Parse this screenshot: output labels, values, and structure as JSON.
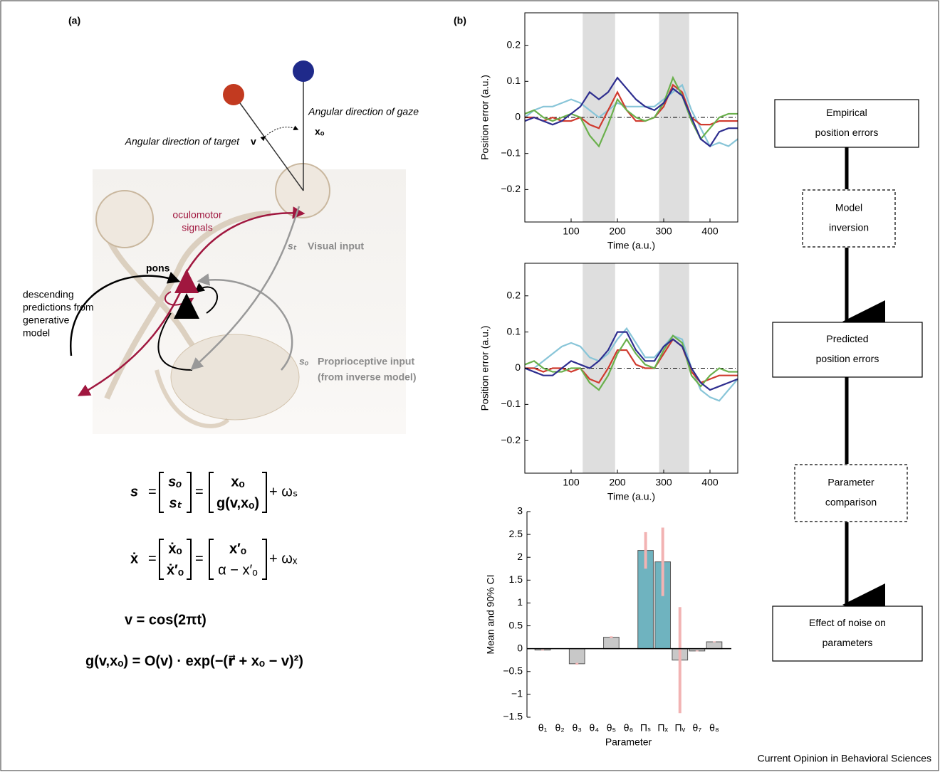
{
  "panel_labels": [
    "(a)",
    "(b)"
  ],
  "diagram": {
    "gaze_label": "Angular direction of gaze",
    "gaze_symbol": "xₒ",
    "target_label": "Angular direction of target",
    "target_symbol": "v",
    "oculomotor": [
      "oculomotor",
      "signals"
    ],
    "visual_symbol": "sₜ",
    "visual_label": "Visual input",
    "pons": "pons",
    "descending": [
      "descending",
      "predictions from",
      "generative",
      "model"
    ],
    "proprio_symbol": "sₒ",
    "proprio_label": [
      "Proprioceptive input",
      "(from inverse model)"
    ]
  },
  "equations": {
    "eq1": {
      "lhs": "s",
      "col1": [
        "sₒ",
        "sₜ"
      ],
      "col2": [
        "xₒ",
        "g(v,xₒ)"
      ],
      "tail": "+ ωₛ"
    },
    "eq2": {
      "lhs": "ẋ",
      "col1": [
        "ẋₒ",
        "ẋ′ₒ"
      ],
      "col2": [
        "x′ₒ",
        "α − x′ₒ"
      ],
      "tail": "+ ωₓ"
    },
    "eq3": "v = cos(2πt)",
    "eq4": "g(v,xₒ) = O(v) · exp(−(r⃗ + xₒ − v)²)"
  },
  "flow": {
    "nodes": [
      {
        "lines": [
          "Empirical",
          "position errors"
        ],
        "style": "solid"
      },
      {
        "lines": [
          "Model",
          "inversion"
        ],
        "style": "dashed"
      },
      {
        "lines": [
          "Predicted",
          "position errors"
        ],
        "style": "solid"
      },
      {
        "lines": [
          "Parameter",
          "comparison"
        ],
        "style": "dashed"
      },
      {
        "lines": [
          "Effect of noise on",
          "parameters"
        ],
        "style": "solid"
      }
    ]
  },
  "credit": "Current Opinion in Behavioral Sciences",
  "chart_data": [
    {
      "type": "line",
      "y_label": "Position error (a.u.)",
      "x_label": "Time (a.u.)",
      "xlim": [
        0,
        460
      ],
      "xticks": [
        100,
        200,
        300,
        400
      ],
      "ylim": [
        -0.29,
        0.29
      ],
      "yticks": [
        {
          "value": -0.2,
          "label": "−0.2"
        },
        {
          "value": -0.1,
          "label": "−0.1"
        },
        0,
        0.1,
        0.2
      ],
      "shaded": [
        [
          125,
          195
        ],
        [
          290,
          355
        ]
      ],
      "x": [
        0,
        20,
        40,
        60,
        80,
        100,
        120,
        140,
        160,
        180,
        200,
        220,
        240,
        260,
        280,
        300,
        320,
        340,
        360,
        380,
        400,
        420,
        440,
        460
      ],
      "series": [
        {
          "color": "#88c5d8",
          "values": [
            0,
            0.02,
            0.03,
            0.03,
            0.04,
            0.05,
            0.04,
            0.02,
            0,
            0.02,
            0.04,
            0.03,
            0.03,
            0.03,
            0.03,
            0.05,
            0.07,
            0.09,
            0.02,
            -0.03,
            -0.08,
            -0.07,
            -0.08,
            -0.06
          ]
        },
        {
          "color": "#d03a2e",
          "values": [
            0,
            0,
            -0.01,
            0,
            -0.01,
            -0.01,
            0,
            -0.02,
            -0.03,
            0.02,
            0.07,
            0.02,
            -0.01,
            -0.01,
            0,
            0.03,
            0.09,
            0.07,
            0,
            -0.02,
            -0.02,
            -0.01,
            -0.01,
            -0.01
          ]
        },
        {
          "color": "#6ab04c",
          "values": [
            0.01,
            0.02,
            0,
            -0.01,
            0,
            0.01,
            0,
            -0.05,
            -0.08,
            -0.02,
            0.05,
            0.02,
            0,
            -0.01,
            0,
            0.04,
            0.11,
            0.06,
            -0.01,
            -0.06,
            -0.03,
            0,
            0.01,
            0.01
          ]
        },
        {
          "color": "#2e2e8f",
          "values": [
            -0.01,
            0,
            -0.01,
            -0.02,
            -0.01,
            0.01,
            0.03,
            0.07,
            0.05,
            0.07,
            0.11,
            0.08,
            0.05,
            0.03,
            0.02,
            0.04,
            0.08,
            0.06,
            0,
            -0.06,
            -0.08,
            -0.04,
            -0.03,
            -0.03
          ]
        }
      ]
    },
    {
      "type": "line",
      "y_label": "Position error (a.u.)",
      "x_label": "Time (a.u.)",
      "xlim": [
        0,
        460
      ],
      "xticks": [
        100,
        200,
        300,
        400
      ],
      "ylim": [
        -0.29,
        0.29
      ],
      "yticks": [
        {
          "value": -0.2,
          "label": "−0.2"
        },
        {
          "value": -0.1,
          "label": "−0.1"
        },
        0,
        0.1,
        0.2
      ],
      "shaded": [
        [
          125,
          195
        ],
        [
          290,
          355
        ]
      ],
      "x": [
        0,
        20,
        40,
        60,
        80,
        100,
        120,
        140,
        160,
        180,
        200,
        220,
        240,
        260,
        280,
        300,
        320,
        340,
        360,
        380,
        400,
        420,
        440,
        460
      ],
      "series": [
        {
          "color": "#88c5d8",
          "values": [
            0,
            0,
            0.02,
            0.04,
            0.06,
            0.07,
            0.06,
            0.03,
            0.02,
            0.04,
            0.08,
            0.11,
            0.07,
            0.03,
            0.03,
            0.06,
            0.09,
            0.08,
            0,
            -0.06,
            -0.08,
            -0.09,
            -0.06,
            -0.03
          ]
        },
        {
          "color": "#d03a2e",
          "values": [
            0,
            0,
            -0.01,
            0,
            0,
            -0.01,
            0,
            -0.03,
            -0.04,
            0,
            0.05,
            0.05,
            0.01,
            0,
            0,
            0.04,
            0.08,
            0.06,
            -0.01,
            -0.04,
            -0.03,
            -0.02,
            -0.02,
            -0.02
          ]
        },
        {
          "color": "#6ab04c",
          "values": [
            0.01,
            0.02,
            0,
            -0.01,
            -0.01,
            0,
            0,
            -0.04,
            -0.06,
            -0.02,
            0.04,
            0.08,
            0.04,
            0.01,
            0,
            0.05,
            0.09,
            0.07,
            -0.02,
            -0.05,
            -0.02,
            0,
            -0.01,
            -0.01
          ]
        },
        {
          "color": "#2e2e8f",
          "values": [
            0,
            -0.01,
            -0.02,
            -0.02,
            0,
            0.02,
            0.01,
            0,
            0.02,
            0.05,
            0.1,
            0.1,
            0.05,
            0.02,
            0.02,
            0.06,
            0.08,
            0.06,
            0,
            -0.04,
            -0.06,
            -0.05,
            -0.04,
            -0.03
          ]
        }
      ]
    },
    {
      "type": "bar",
      "y_label": "Mean and 90% CI",
      "x_label": "Parameter",
      "ylim": [
        -1.5,
        3
      ],
      "yticks": [
        {
          "value": -1.5,
          "label": "−1.5"
        },
        {
          "value": -1,
          "label": "−1"
        },
        {
          "value": -0.5,
          "label": "−0.5"
        },
        0,
        0.5,
        1,
        1.5,
        2,
        2.5,
        3
      ],
      "categories": [
        "θ₁",
        "θ₂",
        "θ₃",
        "θ₄",
        "θ₅",
        "θ₆",
        "Πₛ",
        "Πₓ",
        "Πᵥ",
        "θ₇",
        "θ₈"
      ],
      "values": [
        -0.03,
        0,
        -0.33,
        0,
        0.25,
        0,
        2.15,
        1.9,
        -0.25,
        -0.05,
        0.15
      ],
      "errors": [
        0.01,
        0,
        0.02,
        0,
        0.02,
        0,
        0.4,
        0.75,
        1.16,
        0.01,
        0.01
      ],
      "colors": [
        "#c8c8c8",
        "#c8c8c8",
        "#c8c8c8",
        "#c8c8c8",
        "#c8c8c8",
        "#c8c8c8",
        "#6fb3bf",
        "#6fb3bf",
        "#c8c8c8",
        "#c8c8c8",
        "#c8c8c8"
      ],
      "error_color": "#f2b3b3"
    }
  ]
}
